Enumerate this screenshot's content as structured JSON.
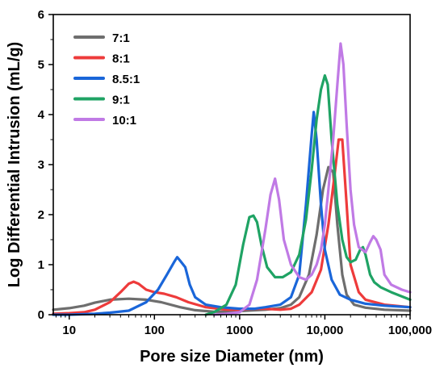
{
  "chart_data": {
    "type": "line",
    "xlabel": "Pore size Diameter (nm)",
    "ylabel": "Log Differential Intrusion (mL/g)",
    "xscale": "log",
    "xlim": [
      6.5,
      100000
    ],
    "ylim": [
      0,
      6
    ],
    "x_tick_values": [
      10,
      100,
      1000,
      10000,
      100000
    ],
    "x_tick_labels": [
      "10",
      "100",
      "1000",
      "10,000",
      "100,000"
    ],
    "y_tick_values": [
      0,
      1,
      2,
      3,
      4,
      5,
      6
    ],
    "y_tick_labels": [
      "0",
      "1",
      "2",
      "3",
      "4",
      "5",
      "6"
    ],
    "grid": false,
    "legend_position": "top-left",
    "series": [
      {
        "name": "7:1",
        "color": "#6e6e6e",
        "points": [
          [
            6.5,
            0.1
          ],
          [
            10,
            0.13
          ],
          [
            15,
            0.18
          ],
          [
            20,
            0.24
          ],
          [
            30,
            0.3
          ],
          [
            50,
            0.32
          ],
          [
            80,
            0.3
          ],
          [
            120,
            0.25
          ],
          [
            200,
            0.15
          ],
          [
            300,
            0.09
          ],
          [
            500,
            0.06
          ],
          [
            800,
            0.06
          ],
          [
            1200,
            0.08
          ],
          [
            2000,
            0.1
          ],
          [
            3000,
            0.13
          ],
          [
            4000,
            0.2
          ],
          [
            5000,
            0.35
          ],
          [
            6500,
            0.8
          ],
          [
            8000,
            1.6
          ],
          [
            9500,
            2.5
          ],
          [
            11000,
            2.95
          ],
          [
            12500,
            2.85
          ],
          [
            14000,
            1.8
          ],
          [
            16000,
            0.8
          ],
          [
            18000,
            0.4
          ],
          [
            22000,
            0.2
          ],
          [
            30000,
            0.14
          ],
          [
            50000,
            0.1
          ],
          [
            100000,
            0.08
          ]
        ]
      },
      {
        "name": "8:1",
        "color": "#ee3b3b",
        "points": [
          [
            6.5,
            0.02
          ],
          [
            10,
            0.03
          ],
          [
            15,
            0.05
          ],
          [
            20,
            0.1
          ],
          [
            30,
            0.25
          ],
          [
            40,
            0.45
          ],
          [
            50,
            0.62
          ],
          [
            57,
            0.66
          ],
          [
            65,
            0.62
          ],
          [
            80,
            0.5
          ],
          [
            100,
            0.45
          ],
          [
            130,
            0.42
          ],
          [
            180,
            0.35
          ],
          [
            250,
            0.25
          ],
          [
            400,
            0.15
          ],
          [
            700,
            0.1
          ],
          [
            1000,
            0.1
          ],
          [
            1500,
            0.12
          ],
          [
            2000,
            0.12
          ],
          [
            3000,
            0.1
          ],
          [
            4000,
            0.12
          ],
          [
            5000,
            0.2
          ],
          [
            7000,
            0.45
          ],
          [
            9000,
            0.9
          ],
          [
            11000,
            1.8
          ],
          [
            13000,
            2.8
          ],
          [
            14500,
            3.5
          ],
          [
            16000,
            3.5
          ],
          [
            18000,
            2.2
          ],
          [
            20000,
            1.0
          ],
          [
            25000,
            0.45
          ],
          [
            30000,
            0.3
          ],
          [
            50000,
            0.2
          ],
          [
            100000,
            0.15
          ]
        ]
      },
      {
        "name": "8.5:1",
        "color": "#1a66d9",
        "points": [
          [
            6.5,
            0.0
          ],
          [
            10,
            0.0
          ],
          [
            20,
            0.02
          ],
          [
            30,
            0.04
          ],
          [
            50,
            0.08
          ],
          [
            80,
            0.25
          ],
          [
            110,
            0.5
          ],
          [
            140,
            0.8
          ],
          [
            170,
            1.05
          ],
          [
            185,
            1.15
          ],
          [
            200,
            1.08
          ],
          [
            230,
            0.95
          ],
          [
            260,
            0.6
          ],
          [
            300,
            0.35
          ],
          [
            400,
            0.2
          ],
          [
            600,
            0.15
          ],
          [
            1000,
            0.12
          ],
          [
            1500,
            0.12
          ],
          [
            2000,
            0.15
          ],
          [
            3000,
            0.2
          ],
          [
            4000,
            0.35
          ],
          [
            5000,
            0.8
          ],
          [
            6000,
            2.2
          ],
          [
            7000,
            3.6
          ],
          [
            7400,
            4.05
          ],
          [
            8000,
            3.5
          ],
          [
            9000,
            2.2
          ],
          [
            10000,
            1.3
          ],
          [
            12000,
            0.7
          ],
          [
            15000,
            0.4
          ],
          [
            20000,
            0.3
          ],
          [
            30000,
            0.22
          ],
          [
            50000,
            0.18
          ],
          [
            100000,
            0.15
          ]
        ]
      },
      {
        "name": "9:1",
        "color": "#1fa364",
        "points": [
          [
            400,
            0.0
          ],
          [
            500,
            0.05
          ],
          [
            700,
            0.2
          ],
          [
            900,
            0.6
          ],
          [
            1100,
            1.4
          ],
          [
            1300,
            1.95
          ],
          [
            1450,
            1.98
          ],
          [
            1600,
            1.85
          ],
          [
            1800,
            1.4
          ],
          [
            2100,
            0.95
          ],
          [
            2600,
            0.75
          ],
          [
            3200,
            0.75
          ],
          [
            4000,
            0.85
          ],
          [
            5000,
            1.2
          ],
          [
            6000,
            1.9
          ],
          [
            7000,
            2.9
          ],
          [
            8000,
            3.9
          ],
          [
            9000,
            4.5
          ],
          [
            10000,
            4.78
          ],
          [
            10800,
            4.6
          ],
          [
            12000,
            3.5
          ],
          [
            14000,
            2.2
          ],
          [
            16000,
            1.5
          ],
          [
            18000,
            1.15
          ],
          [
            20000,
            1.05
          ],
          [
            23000,
            1.1
          ],
          [
            26000,
            1.3
          ],
          [
            28000,
            1.35
          ],
          [
            30000,
            1.2
          ],
          [
            34000,
            0.8
          ],
          [
            38000,
            0.65
          ],
          [
            45000,
            0.55
          ],
          [
            60000,
            0.45
          ],
          [
            100000,
            0.3
          ]
        ]
      },
      {
        "name": "10:1",
        "color": "#c07ae5",
        "points": [
          [
            500,
            0.0
          ],
          [
            700,
            0.02
          ],
          [
            1000,
            0.05
          ],
          [
            1300,
            0.2
          ],
          [
            1600,
            0.7
          ],
          [
            2000,
            1.7
          ],
          [
            2300,
            2.4
          ],
          [
            2600,
            2.72
          ],
          [
            2900,
            2.3
          ],
          [
            3300,
            1.5
          ],
          [
            4000,
            1.0
          ],
          [
            5000,
            0.75
          ],
          [
            6000,
            0.7
          ],
          [
            7000,
            0.8
          ],
          [
            8000,
            1.0
          ],
          [
            9000,
            1.3
          ],
          [
            10000,
            1.8
          ],
          [
            11000,
            2.5
          ],
          [
            12500,
            3.5
          ],
          [
            14000,
            4.6
          ],
          [
            15300,
            5.42
          ],
          [
            16500,
            5.0
          ],
          [
            18000,
            3.8
          ],
          [
            20000,
            2.5
          ],
          [
            22000,
            1.8
          ],
          [
            25000,
            1.35
          ],
          [
            30000,
            1.25
          ],
          [
            34000,
            1.45
          ],
          [
            37000,
            1.57
          ],
          [
            40000,
            1.5
          ],
          [
            45000,
            1.3
          ],
          [
            50000,
            0.8
          ],
          [
            60000,
            0.6
          ],
          [
            80000,
            0.5
          ],
          [
            100000,
            0.45
          ]
        ]
      }
    ]
  }
}
